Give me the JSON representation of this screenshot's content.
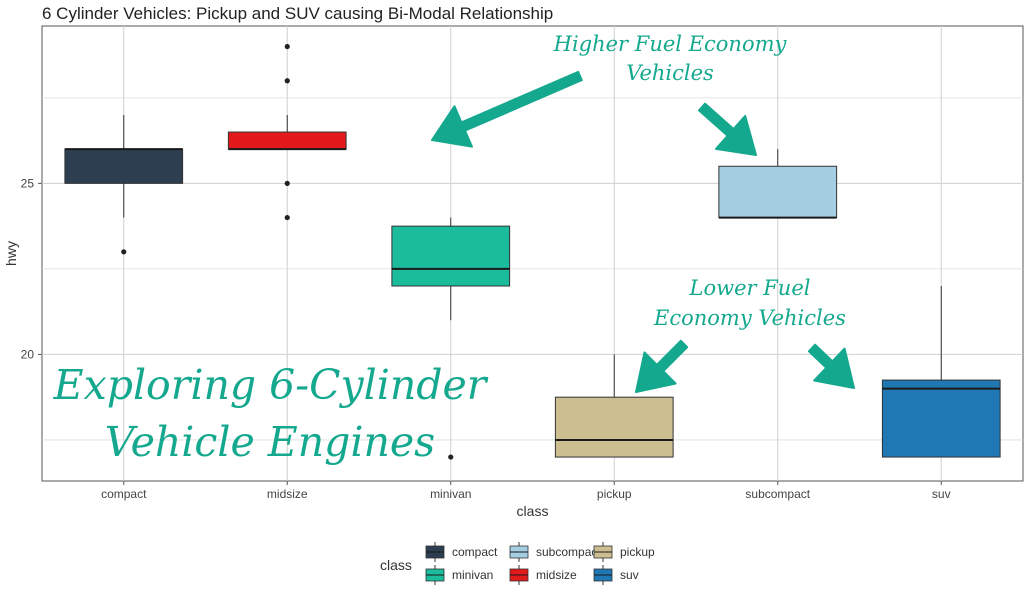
{
  "chart_data": {
    "type": "boxplot",
    "title": "6 Cylinder Vehicles: Pickup and SUV causing Bi-Modal Relationship",
    "xlabel": "class",
    "ylabel": "hwy",
    "ylim": [
      16.3,
      29.6
    ],
    "yticks": [
      20,
      25
    ],
    "categories": [
      "compact",
      "midsize",
      "minivan",
      "pickup",
      "subcompact",
      "suv"
    ],
    "boxes": [
      {
        "class": "compact",
        "color": "#2c3e50",
        "whisker_low": 24,
        "q1": 25,
        "median": 26,
        "q3": 26,
        "whisker_high": 27,
        "outliers": [
          23
        ]
      },
      {
        "class": "midsize",
        "color": "#e31a1c",
        "whisker_low": 26,
        "q1": 26,
        "median": 26,
        "q3": 26.5,
        "whisker_high": 27,
        "outliers": [
          24,
          25,
          28,
          29
        ]
      },
      {
        "class": "minivan",
        "color": "#1abc9c",
        "whisker_low": 21,
        "q1": 22,
        "median": 22.5,
        "q3": 23.75,
        "whisker_high": 24,
        "outliers": [
          17
        ]
      },
      {
        "class": "pickup",
        "color": "#cdbe91",
        "whisker_low": 17,
        "q1": 17,
        "median": 17.5,
        "q3": 18.75,
        "whisker_high": 20,
        "outliers": []
      },
      {
        "class": "subcompact",
        "color": "#a6cee3",
        "whisker_low": 24,
        "q1": 24,
        "median": 24,
        "q3": 25.5,
        "whisker_high": 26,
        "outliers": []
      },
      {
        "class": "suv",
        "color": "#1f78b4",
        "whisker_low": 17,
        "q1": 17,
        "median": 19,
        "q3": 19.25,
        "whisker_high": 22,
        "outliers": []
      }
    ],
    "legend": {
      "title": "class",
      "position": "bottom",
      "entries": [
        "compact",
        "minivan",
        "subcompact",
        "midsize",
        "pickup",
        "suv"
      ]
    },
    "annotations": {
      "higher": [
        "Higher Fuel Economy",
        "Vehicles"
      ],
      "lower": [
        "Lower Fuel",
        "Economy Vehicles"
      ],
      "big": [
        "Exploring 6-Cylinder",
        "Vehicle Engines"
      ]
    },
    "annotation_color": "#14a88e"
  }
}
